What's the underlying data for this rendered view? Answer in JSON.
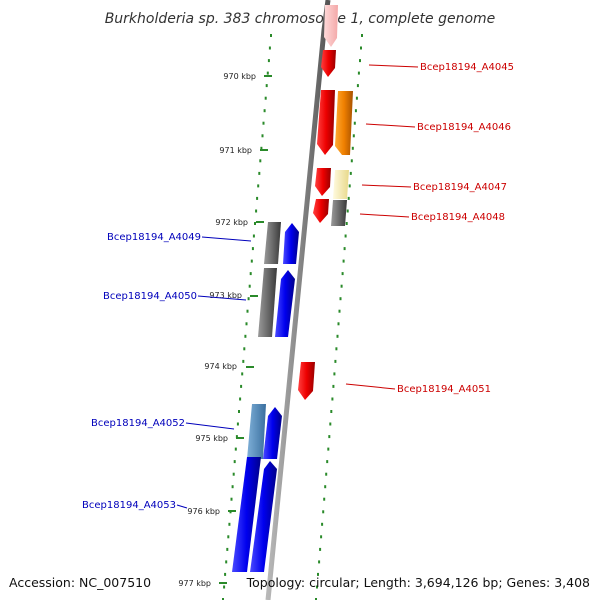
{
  "title": "Burkholderia sp. 383 chromosome 1, complete genome",
  "footer": {
    "accession": "Accession: NC_007510",
    "summary": "Topology: circular; Length: 3,694,126 bp; Genes: 3,408"
  },
  "colors": {
    "right_label": "#cc0000",
    "left_label": "#0000bb",
    "dots": "#2a8a2a",
    "backbone": "#888888"
  },
  "kbp_ticks": [
    "970 kbp",
    "971 kbp",
    "972 kbp",
    "973 kbp",
    "974 kbp",
    "975 kbp",
    "976 kbp",
    "977 kbp"
  ],
  "genes_right": [
    {
      "id": "Bcep18194_A4045"
    },
    {
      "id": "Bcep18194_A4046"
    },
    {
      "id": "Bcep18194_A4047"
    },
    {
      "id": "Bcep18194_A4048"
    },
    {
      "id": "Bcep18194_A4051"
    }
  ],
  "genes_left": [
    {
      "id": "Bcep18194_A4049"
    },
    {
      "id": "Bcep18194_A4050"
    },
    {
      "id": "Bcep18194_A4052"
    },
    {
      "id": "Bcep18194_A4053"
    }
  ]
}
